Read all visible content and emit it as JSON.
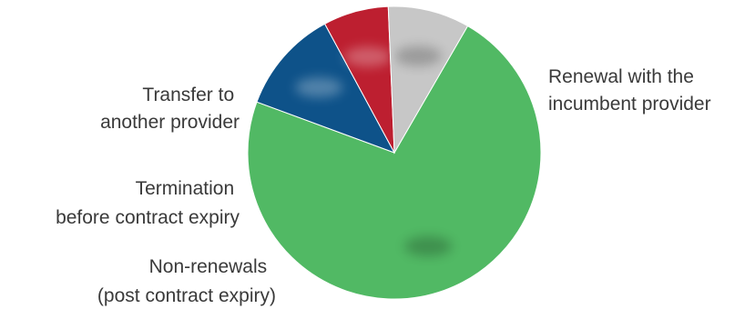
{
  "chart_data": {
    "type": "pie",
    "slices": [
      {
        "key": "renewal",
        "label_lines": [
          "Renewal with the",
          "incumbent provider"
        ],
        "value": 72.3,
        "color": "#51b964"
      },
      {
        "key": "non-renewal",
        "label_lines": [
          "Non-renewals",
          "(post contract expiry)"
        ],
        "value": 11.5,
        "color": "#0e5289"
      },
      {
        "key": "termination",
        "label_lines": [
          "Termination",
          "before contract expiry"
        ],
        "value": 7.2,
        "color": "#bd1f30"
      },
      {
        "key": "transfer",
        "label_lines": [
          "Transfer to",
          "another provider"
        ],
        "value": 9.0,
        "color": "#c7c7c7"
      }
    ],
    "title": "",
    "legend": "none",
    "start_angle_deg": -60,
    "direction": "clockwise"
  }
}
